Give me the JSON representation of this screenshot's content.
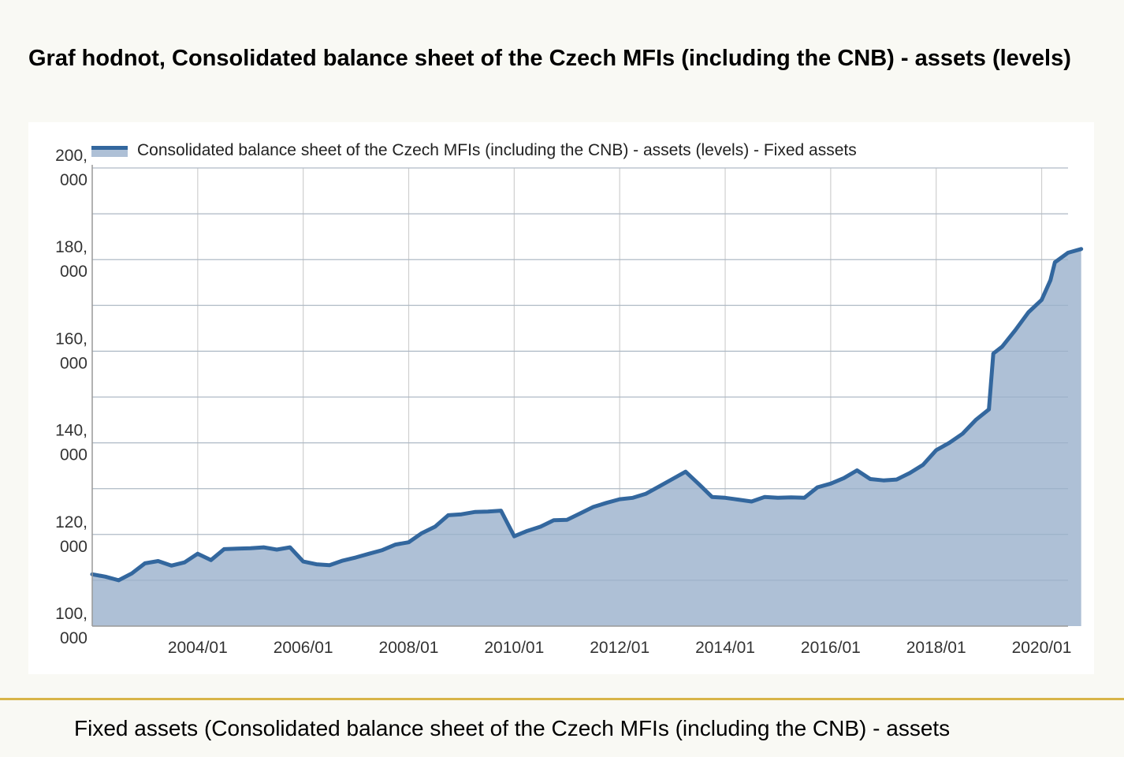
{
  "page": {
    "title": "Graf hodnot, Consolidated balance sheet of the Czech MFIs (including the CNB) - assets (levels)",
    "caption": "Fixed assets (Consolidated balance sheet of the Czech MFIs (including the CNB) - assets"
  },
  "colors": {
    "line": "#33679e",
    "area": "#aec0d6",
    "grid": "#cfcfcf",
    "footer_rule": "#d8b548"
  },
  "chart_data": {
    "type": "area",
    "series": [
      {
        "name": "Consolidated balance sheet of the Czech MFIs (including the CNB) - assets (levels) - Fixed assets",
        "x": [
          "2002/01",
          "2002/04",
          "2002/07",
          "2002/10",
          "2003/01",
          "2003/04",
          "2003/07",
          "2003/10",
          "2004/01",
          "2004/04",
          "2004/07",
          "2004/10",
          "2005/01",
          "2005/04",
          "2005/07",
          "2005/10",
          "2006/01",
          "2006/04",
          "2006/07",
          "2006/10",
          "2007/01",
          "2007/04",
          "2007/07",
          "2007/10",
          "2008/01",
          "2008/04",
          "2008/07",
          "2008/10",
          "2009/01",
          "2009/04",
          "2009/07",
          "2009/10",
          "2010/01",
          "2010/04",
          "2010/07",
          "2010/10",
          "2011/01",
          "2011/04",
          "2011/07",
          "2011/10",
          "2012/01",
          "2012/04",
          "2012/07",
          "2012/10",
          "2013/01",
          "2013/04",
          "2013/07",
          "2013/10",
          "2014/01",
          "2014/04",
          "2014/07",
          "2014/10",
          "2015/01",
          "2015/04",
          "2015/07",
          "2015/10",
          "2016/01",
          "2016/04",
          "2016/07",
          "2016/10",
          "2017/01",
          "2017/04",
          "2017/07",
          "2017/10",
          "2018/01",
          "2018/04",
          "2018/07",
          "2018/10",
          "2019/01",
          "2019/02",
          "2019/04",
          "2019/07",
          "2019/10",
          "2020/01",
          "2020/03",
          "2020/04",
          "2020/07",
          "2020/10"
        ],
        "values": [
          111300,
          110800,
          110000,
          111500,
          113700,
          114200,
          113200,
          113900,
          115800,
          114400,
          116800,
          116900,
          117000,
          117200,
          116700,
          117200,
          114100,
          113500,
          113300,
          114300,
          115000,
          115800,
          116600,
          117800,
          118300,
          120300,
          121700,
          124200,
          124400,
          124900,
          125000,
          125200,
          119600,
          120800,
          121700,
          123100,
          123200,
          124600,
          126000,
          126900,
          127700,
          128000,
          128900,
          130500,
          132100,
          133700,
          131000,
          128200,
          128000,
          127600,
          127200,
          128200,
          128000,
          128100,
          128000,
          130300,
          131100,
          132300,
          134000,
          132100,
          131800,
          132000,
          133400,
          135200,
          138400,
          140000,
          142000,
          145000,
          147300,
          159500,
          161000,
          164600,
          168500,
          171200,
          175500,
          179400,
          181500,
          182300
        ]
      }
    ],
    "xticks": [
      "2004/01",
      "2006/01",
      "2008/01",
      "2010/01",
      "2012/01",
      "2014/01",
      "2016/01",
      "2018/01",
      "2020/01"
    ],
    "yticks": [
      {
        "value": 100000,
        "label": [
          "100,",
          "000"
        ]
      },
      {
        "value": 120000,
        "label": [
          "120,",
          "000"
        ]
      },
      {
        "value": 140000,
        "label": [
          "140,",
          "000"
        ]
      },
      {
        "value": 160000,
        "label": [
          "160,",
          "000"
        ]
      },
      {
        "value": 180000,
        "label": [
          "180,",
          "000"
        ]
      },
      {
        "value": 200000,
        "label": [
          "200,",
          "000"
        ]
      }
    ],
    "xlim": [
      "2002/01",
      "2020/07"
    ],
    "ylim": [
      100000,
      200000
    ],
    "grid": true,
    "legend_position": "top-left"
  }
}
